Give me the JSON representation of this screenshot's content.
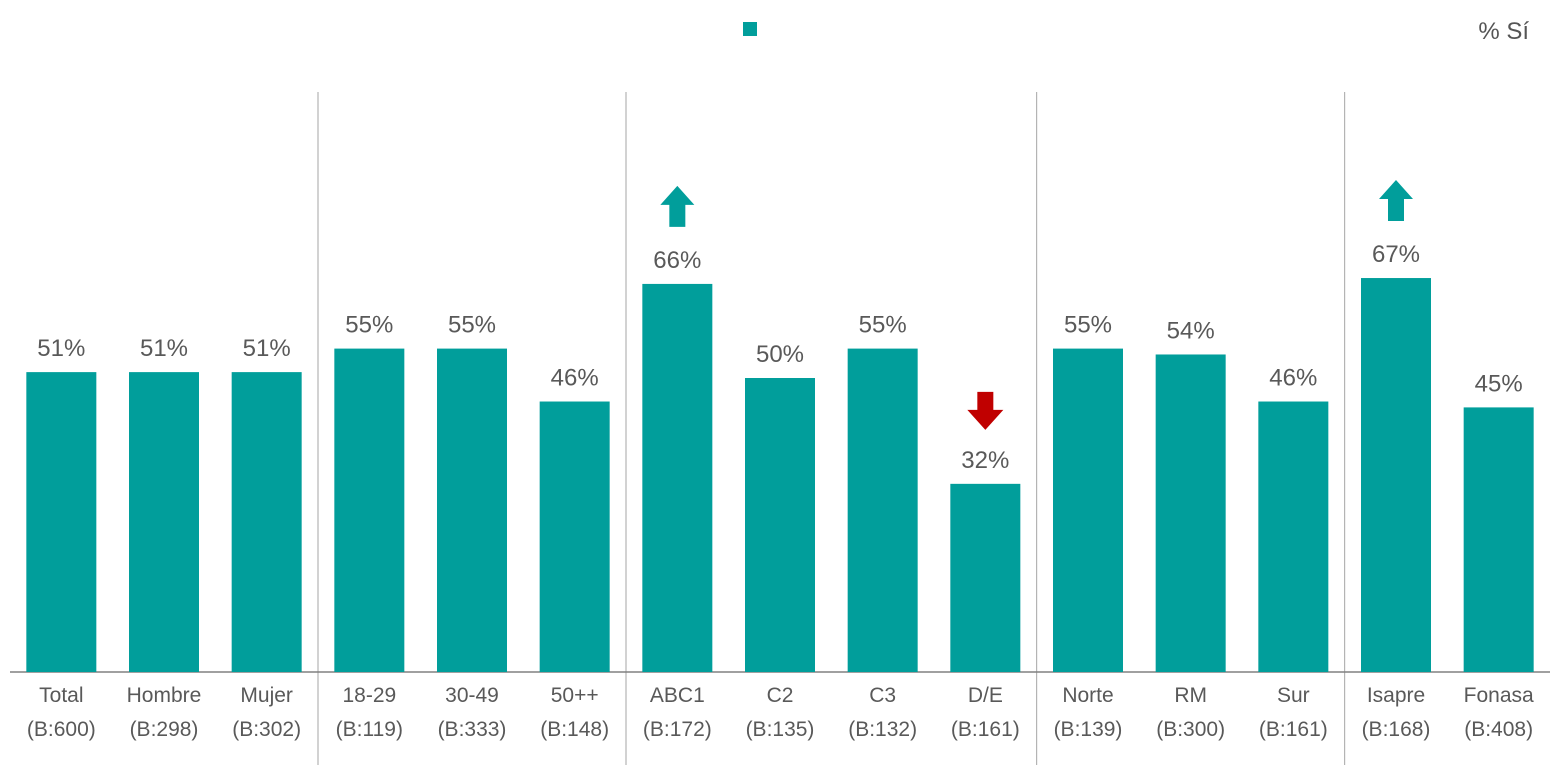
{
  "legend": {
    "swatch_color": "#019E9B",
    "label": "% Sí"
  },
  "colors": {
    "bar": "#019E9B",
    "up_arrow": "#019E9B",
    "down_arrow": "#C00000",
    "label_text": "#595959",
    "separator": "#A6A6A6"
  },
  "chart_data": {
    "type": "bar",
    "title": "",
    "xlabel": "",
    "ylabel": "",
    "ylim": [
      0,
      80
    ],
    "grid": false,
    "legend_position": "top-right",
    "categories": [
      "Total",
      "Hombre",
      "Mujer",
      "18-29",
      "30-49",
      "50++",
      "ABC1",
      "C2",
      "C3",
      "D/E",
      "Norte",
      "RM",
      "Sur",
      "Isapre",
      "Fonasa"
    ],
    "bases": [
      "(B:600)",
      "(B:298)",
      "(B:302)",
      "(B:119)",
      "(B:333)",
      "(B:148)",
      "(B:172)",
      "(B:135)",
      "(B:132)",
      "(B:161)",
      "(B:139)",
      "(B:300)",
      "(B:161)",
      "(B:168)",
      "(B:408)"
    ],
    "series": [
      {
        "name": "% Sí",
        "values": [
          51,
          51,
          51,
          55,
          55,
          46,
          66,
          50,
          55,
          32,
          55,
          54,
          46,
          67,
          45
        ]
      }
    ],
    "data_labels": [
      "51%",
      "51%",
      "51%",
      "55%",
      "55%",
      "46%",
      "66%",
      "50%",
      "55%",
      "32%",
      "55%",
      "54%",
      "46%",
      "67%",
      "45%"
    ],
    "significance": [
      null,
      null,
      null,
      null,
      null,
      null,
      "up",
      null,
      null,
      "down",
      null,
      null,
      null,
      "up",
      null
    ],
    "group_separators_after": [
      2,
      5,
      9,
      12
    ]
  }
}
